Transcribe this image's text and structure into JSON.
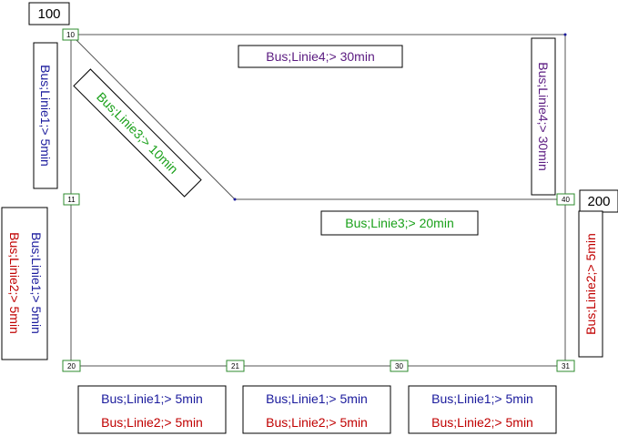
{
  "colors": {
    "linie1": "#1a1a9c",
    "linie2": "#c00000",
    "linie3": "#19a019",
    "linie4": "#5a1a80",
    "line": "#555555",
    "node_border": "#2e8b2e"
  },
  "zones": {
    "zone_100": "100",
    "zone_200": "200"
  },
  "nodes": {
    "n10": "10",
    "n11": "11",
    "n20": "20",
    "n21": "21",
    "n30": "30",
    "n31": "31",
    "n40": "40"
  },
  "labels": {
    "l4_top": "Bus;Linie4;>  30min",
    "l4_right": "Bus;Linie4;>  30min",
    "l1_upper_left": "Bus;Linie1;>  5min",
    "l3_diag": "Bus;Linie3;>  10min",
    "l3_mid": "Bus;Linie3;>  20min",
    "left_l1": "Bus;Linie1;>  5min",
    "left_l2": "Bus;Linie2;>  5min",
    "right_l2": "Bus;Linie2;>  5min",
    "b1_l1": "Bus;Linie1;>  5min",
    "b1_l2": "Bus;Linie2;>  5min",
    "b2_l1": "Bus;Linie1;>  5min",
    "b2_l2": "Bus;Linie2;>  5min",
    "b3_l1": "Bus;Linie1;>  5min",
    "b3_l2": "Bus;Linie2;>  5min"
  }
}
